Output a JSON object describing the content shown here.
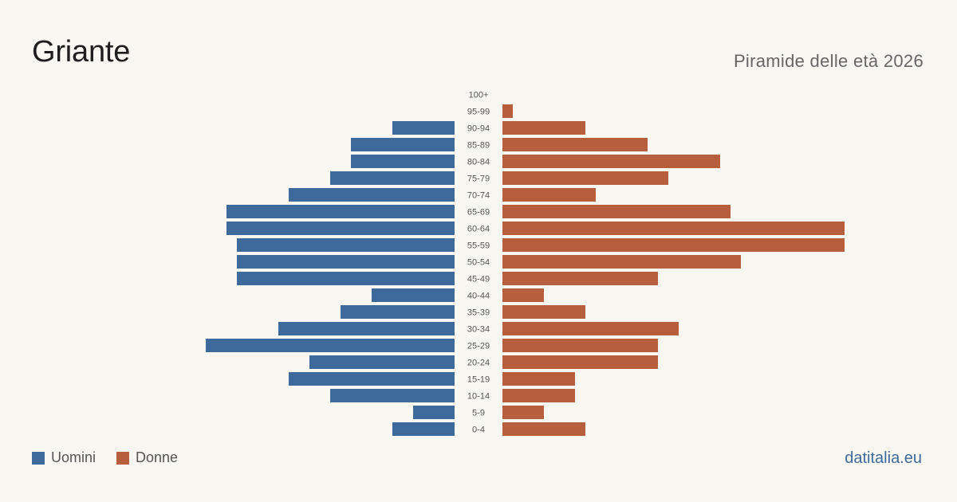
{
  "header": {
    "title": "Griante",
    "subtitle": "Piramide delle età 2026"
  },
  "legend": {
    "men_label": "Uomini",
    "women_label": "Donne"
  },
  "brand": "datitalia.eu",
  "colors": {
    "men": "#3d6a9a",
    "women": "#b95e3c",
    "background": "#f9f7f2"
  },
  "chart_data": {
    "type": "bar",
    "orientation": "horizontal-pyramid",
    "categories": [
      "100+",
      "95-99",
      "90-94",
      "85-89",
      "80-84",
      "75-79",
      "70-74",
      "65-69",
      "60-64",
      "55-59",
      "50-54",
      "45-49",
      "40-44",
      "35-39",
      "30-34",
      "25-29",
      "20-24",
      "15-19",
      "10-14",
      "5-9",
      "0-4"
    ],
    "series": [
      {
        "name": "Uomini",
        "values": [
          0,
          0,
          6,
          10,
          10,
          12,
          16,
          22,
          22,
          21,
          21,
          21,
          8,
          11,
          17,
          24,
          14,
          16,
          12,
          4,
          6
        ]
      },
      {
        "name": "Donne",
        "values": [
          0,
          1,
          8,
          14,
          21,
          16,
          9,
          22,
          33,
          33,
          23,
          15,
          4,
          8,
          17,
          15,
          15,
          7,
          7,
          4,
          8
        ]
      }
    ],
    "grid": false,
    "legend_position": "bottom-left"
  }
}
